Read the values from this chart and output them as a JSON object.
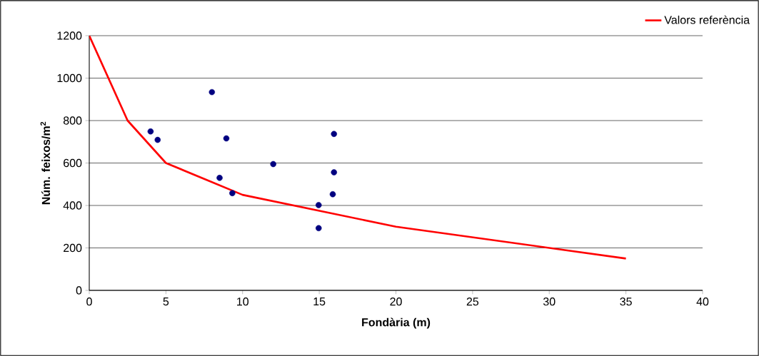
{
  "chart_data": {
    "type": "scatter",
    "xlabel": "Fondària (m)",
    "ylabel": "Núm. feixos/m$^{2}$",
    "xlim": [
      0,
      40
    ],
    "ylim": [
      0,
      1200
    ],
    "xticks": [
      0,
      5,
      10,
      15,
      20,
      25,
      30,
      35,
      40
    ],
    "yticks": [
      0,
      200,
      400,
      600,
      800,
      1000,
      1200
    ],
    "grid": "y",
    "legend": "top right",
    "marker": "circle",
    "series": [
      {
        "color": "#000080",
        "x": [
          4.0,
          4.46,
          8.0,
          8.94,
          8.5,
          9.33,
          12.0,
          14.96,
          14.96,
          15.96,
          15.96,
          15.88
        ],
        "values": [
          749,
          709,
          934,
          716,
          530,
          458,
          595,
          402,
          293,
          737,
          556,
          453
        ]
      },
      {
        "type": "line",
        "name": "Valors referència",
        "color": "#ff0000",
        "marker": "none",
        "x": [
          0,
          2.5,
          5,
          10,
          20,
          35
        ],
        "values": [
          1200,
          800,
          600,
          450,
          300,
          150
        ]
      }
    ]
  }
}
